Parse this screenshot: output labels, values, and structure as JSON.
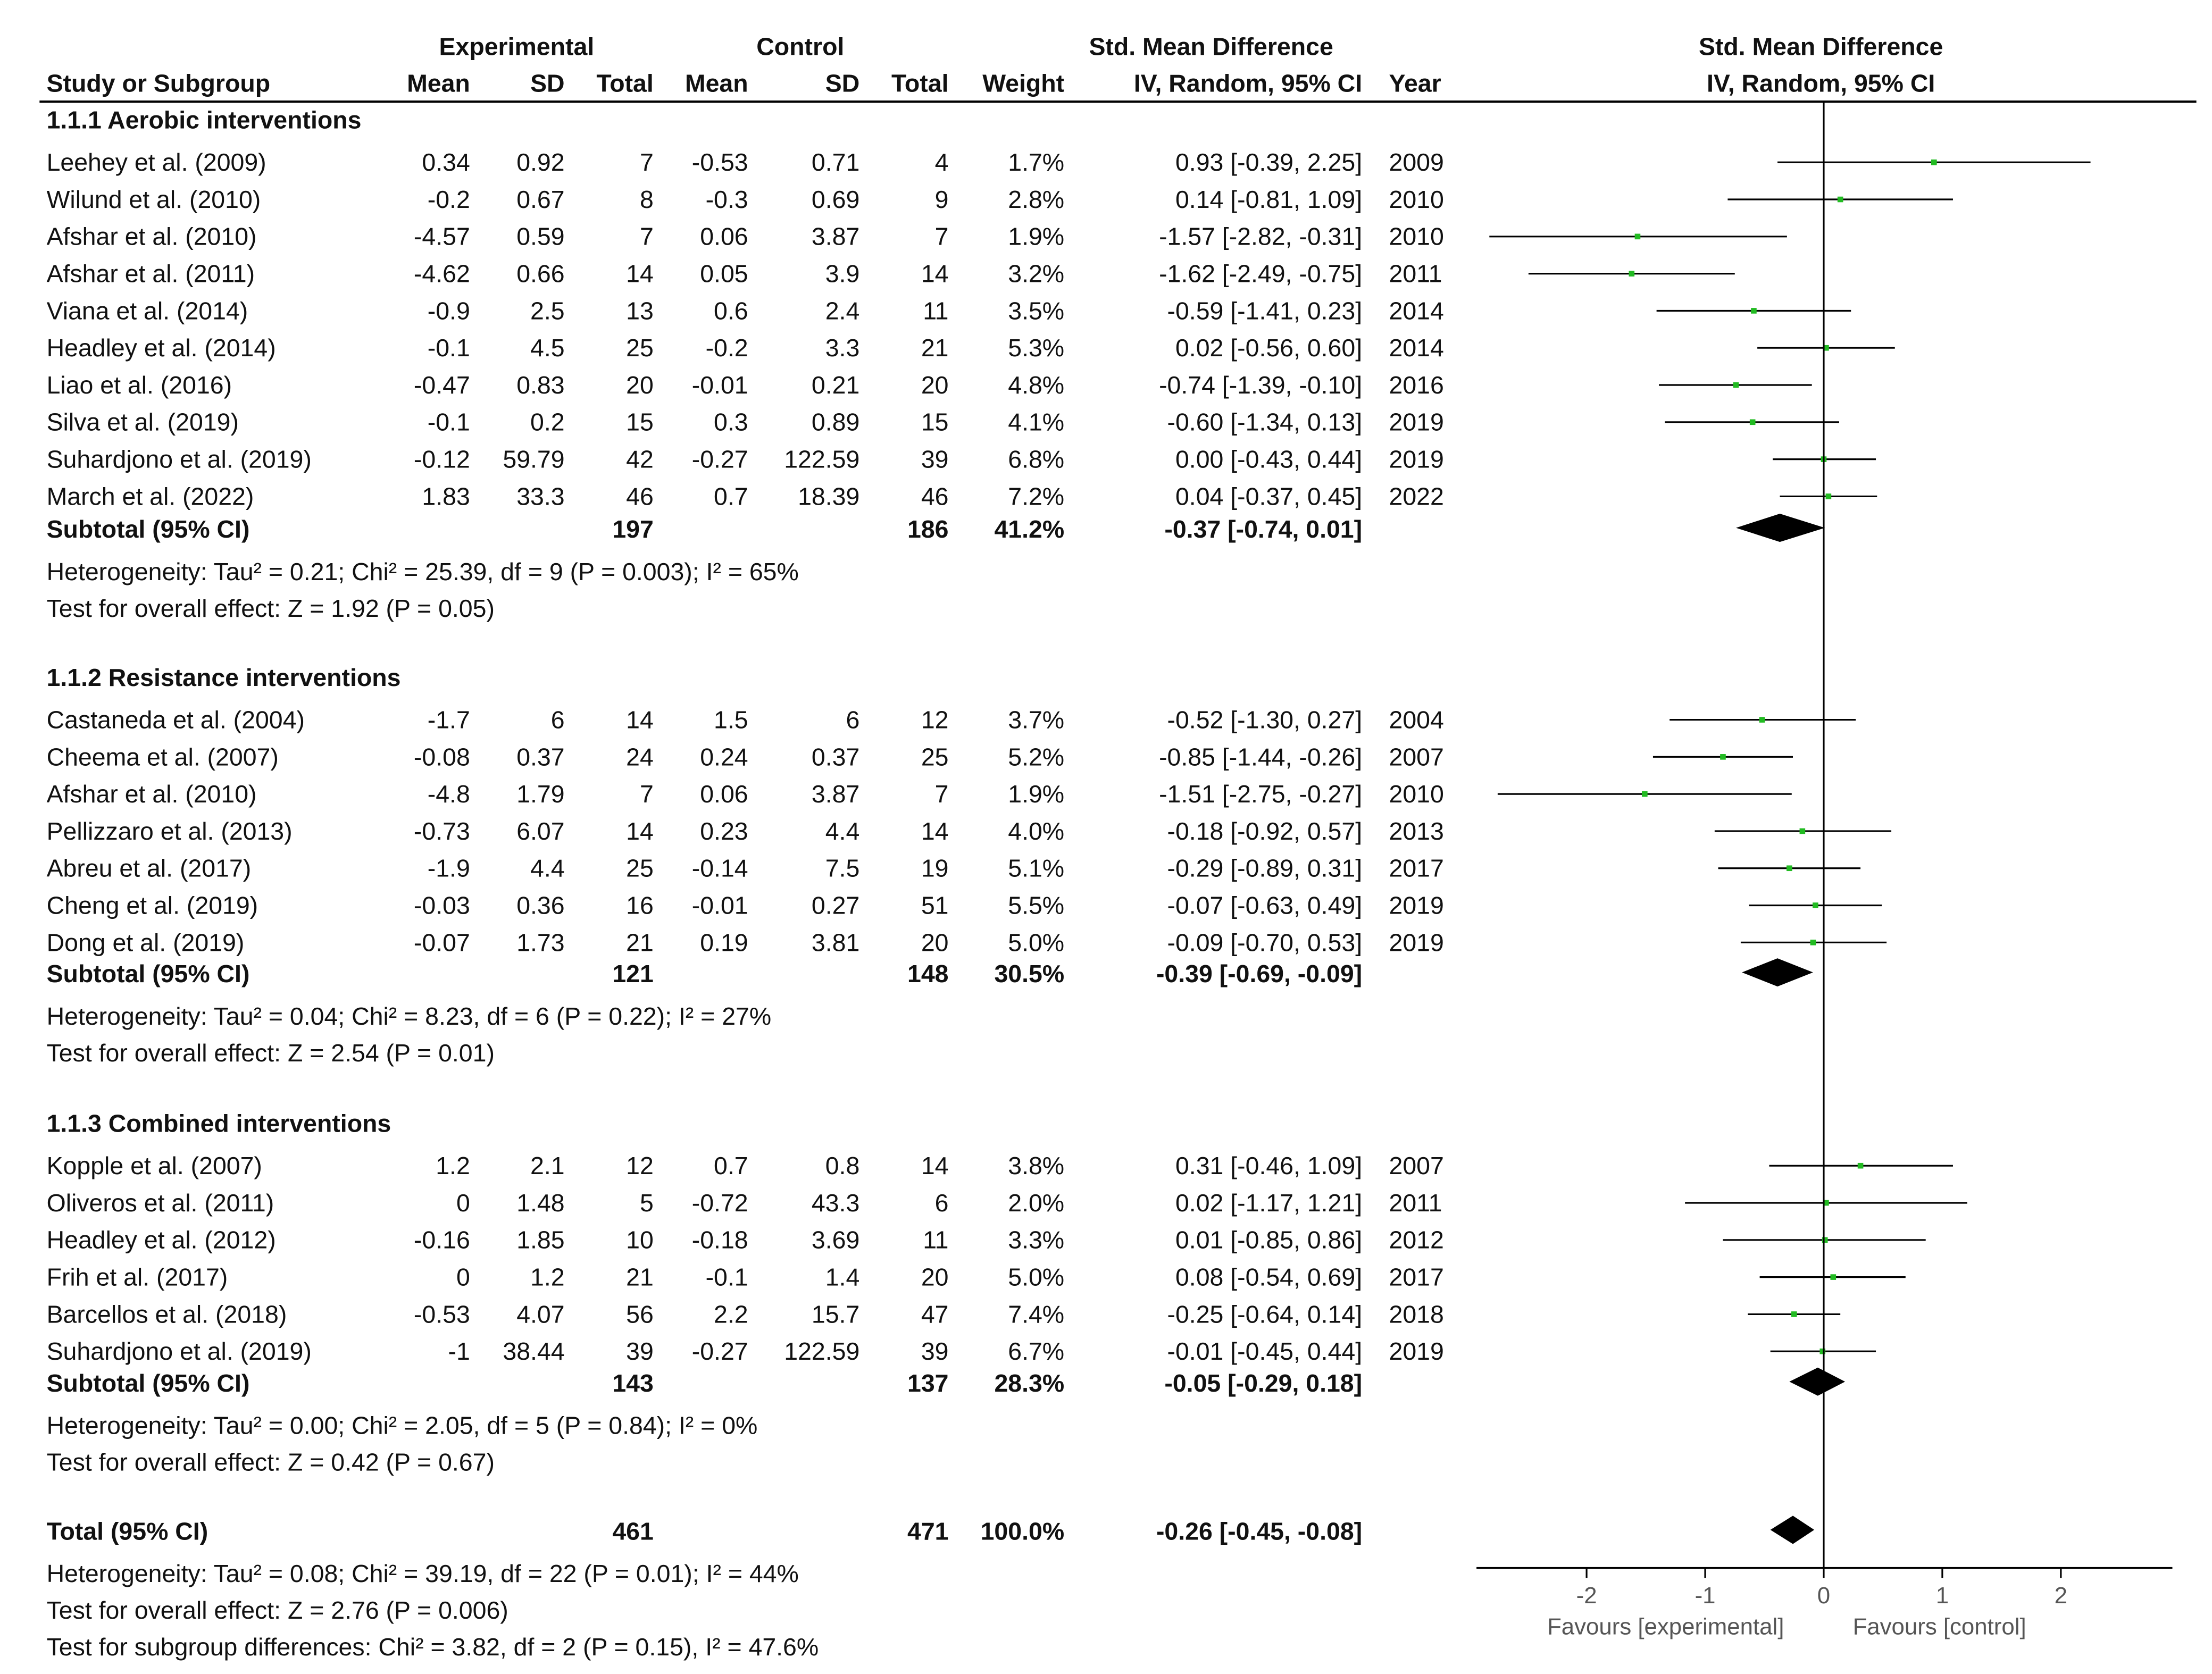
{
  "header": {
    "experimental": "Experimental",
    "control": "Control",
    "smd_left": "Std. Mean Difference",
    "smd_right": "Std. Mean Difference",
    "study": "Study or Subgroup",
    "mean_e": "Mean",
    "sd_e": "SD",
    "total_e": "Total",
    "mean_c": "Mean",
    "sd_c": "SD",
    "total_c": "Total",
    "weight": "Weight",
    "ci_left": "IV, Random, 95% CI",
    "year": "Year",
    "ci_right": "IV, Random, 95% CI"
  },
  "axis": {
    "ticks": [
      "-2",
      "-1",
      "0",
      "1",
      "2"
    ],
    "favours_experimental": "Favours [experimental]",
    "favours_control": "Favours [control]"
  },
  "chart_data": {
    "type": "forest",
    "xlim": [
      -2.9,
      2.9
    ],
    "xticks": [
      -2,
      -1,
      0,
      1,
      2
    ],
    "colors": {
      "study_marker": "#22bb22",
      "diamond": "#000000",
      "lines": "#000000"
    },
    "groups": [
      {
        "title": "1.1.1 Aerobic interventions",
        "studies": [
          {
            "name": "Leehey et al. (2009)",
            "mean_e": "0.34",
            "sd_e": "0.92",
            "n_e": "7",
            "mean_c": "-0.53",
            "sd_c": "0.71",
            "n_c": "4",
            "weight": "1.7%",
            "ci": "0.93 [-0.39, 2.25]",
            "year": "2009",
            "est": 0.93,
            "lo": -0.39,
            "hi": 2.25
          },
          {
            "name": "Wilund et al. (2010)",
            "mean_e": "-0.2",
            "sd_e": "0.67",
            "n_e": "8",
            "mean_c": "-0.3",
            "sd_c": "0.69",
            "n_c": "9",
            "weight": "2.8%",
            "ci": "0.14 [-0.81, 1.09]",
            "year": "2010",
            "est": 0.14,
            "lo": -0.81,
            "hi": 1.09
          },
          {
            "name": "Afshar et al. (2010)",
            "mean_e": "-4.57",
            "sd_e": "0.59",
            "n_e": "7",
            "mean_c": "0.06",
            "sd_c": "3.87",
            "n_c": "7",
            "weight": "1.9%",
            "ci": "-1.57 [-2.82, -0.31]",
            "year": "2010",
            "est": -1.57,
            "lo": -2.82,
            "hi": -0.31
          },
          {
            "name": "Afshar et al. (2011)",
            "mean_e": "-4.62",
            "sd_e": "0.66",
            "n_e": "14",
            "mean_c": "0.05",
            "sd_c": "3.9",
            "n_c": "14",
            "weight": "3.2%",
            "ci": "-1.62 [-2.49, -0.75]",
            "year": "2011",
            "est": -1.62,
            "lo": -2.49,
            "hi": -0.75
          },
          {
            "name": "Viana et al. (2014)",
            "mean_e": "-0.9",
            "sd_e": "2.5",
            "n_e": "13",
            "mean_c": "0.6",
            "sd_c": "2.4",
            "n_c": "11",
            "weight": "3.5%",
            "ci": "-0.59 [-1.41, 0.23]",
            "year": "2014",
            "est": -0.59,
            "lo": -1.41,
            "hi": 0.23
          },
          {
            "name": "Headley et al. (2014)",
            "mean_e": "-0.1",
            "sd_e": "4.5",
            "n_e": "25",
            "mean_c": "-0.2",
            "sd_c": "3.3",
            "n_c": "21",
            "weight": "5.3%",
            "ci": "0.02 [-0.56, 0.60]",
            "year": "2014",
            "est": 0.02,
            "lo": -0.56,
            "hi": 0.6
          },
          {
            "name": "Liao et al. (2016)",
            "mean_e": "-0.47",
            "sd_e": "0.83",
            "n_e": "20",
            "mean_c": "-0.01",
            "sd_c": "0.21",
            "n_c": "20",
            "weight": "4.8%",
            "ci": "-0.74 [-1.39, -0.10]",
            "year": "2016",
            "est": -0.74,
            "lo": -1.39,
            "hi": -0.1
          },
          {
            "name": "Silva et al. (2019)",
            "mean_e": "-0.1",
            "sd_e": "0.2",
            "n_e": "15",
            "mean_c": "0.3",
            "sd_c": "0.89",
            "n_c": "15",
            "weight": "4.1%",
            "ci": "-0.60 [-1.34, 0.13]",
            "year": "2019",
            "est": -0.6,
            "lo": -1.34,
            "hi": 0.13
          },
          {
            "name": "Suhardjono et al. (2019)",
            "mean_e": "-0.12",
            "sd_e": "59.79",
            "n_e": "42",
            "mean_c": "-0.27",
            "sd_c": "122.59",
            "n_c": "39",
            "weight": "6.8%",
            "ci": "0.00 [-0.43, 0.44]",
            "year": "2019",
            "est": 0.0,
            "lo": -0.43,
            "hi": 0.44
          },
          {
            "name": "March et al. (2022)",
            "mean_e": "1.83",
            "sd_e": "33.3",
            "n_e": "46",
            "mean_c": "0.7",
            "sd_c": "18.39",
            "n_c": "46",
            "weight": "7.2%",
            "ci": "0.04 [-0.37, 0.45]",
            "year": "2022",
            "est": 0.04,
            "lo": -0.37,
            "hi": 0.45
          }
        ],
        "subtotal": {
          "label": "Subtotal (95% CI)",
          "n_e": "197",
          "n_c": "186",
          "weight": "41.2%",
          "ci": "-0.37 [-0.74, 0.01]",
          "est": -0.37,
          "lo": -0.74,
          "hi": 0.01
        },
        "heterogeneity": "Heterogeneity: Tau² = 0.21; Chi² = 25.39, df = 9 (P = 0.003); I² = 65%",
        "overall": "Test for overall effect: Z = 1.92 (P = 0.05)"
      },
      {
        "title": "1.1.2 Resistance interventions",
        "studies": [
          {
            "name": "Castaneda et al. (2004)",
            "mean_e": "-1.7",
            "sd_e": "6",
            "n_e": "14",
            "mean_c": "1.5",
            "sd_c": "6",
            "n_c": "12",
            "weight": "3.7%",
            "ci": "-0.52 [-1.30, 0.27]",
            "year": "2004",
            "est": -0.52,
            "lo": -1.3,
            "hi": 0.27
          },
          {
            "name": "Cheema et al. (2007)",
            "mean_e": "-0.08",
            "sd_e": "0.37",
            "n_e": "24",
            "mean_c": "0.24",
            "sd_c": "0.37",
            "n_c": "25",
            "weight": "5.2%",
            "ci": "-0.85 [-1.44, -0.26]",
            "year": "2007",
            "est": -0.85,
            "lo": -1.44,
            "hi": -0.26
          },
          {
            "name": "Afshar et al. (2010)",
            "mean_e": "-4.8",
            "sd_e": "1.79",
            "n_e": "7",
            "mean_c": "0.06",
            "sd_c": "3.87",
            "n_c": "7",
            "weight": "1.9%",
            "ci": "-1.51 [-2.75, -0.27]",
            "year": "2010",
            "est": -1.51,
            "lo": -2.75,
            "hi": -0.27
          },
          {
            "name": "Pellizzaro et al. (2013)",
            "mean_e": "-0.73",
            "sd_e": "6.07",
            "n_e": "14",
            "mean_c": "0.23",
            "sd_c": "4.4",
            "n_c": "14",
            "weight": "4.0%",
            "ci": "-0.18 [-0.92, 0.57]",
            "year": "2013",
            "est": -0.18,
            "lo": -0.92,
            "hi": 0.57
          },
          {
            "name": "Abreu et al. (2017)",
            "mean_e": "-1.9",
            "sd_e": "4.4",
            "n_e": "25",
            "mean_c": "-0.14",
            "sd_c": "7.5",
            "n_c": "19",
            "weight": "5.1%",
            "ci": "-0.29 [-0.89, 0.31]",
            "year": "2017",
            "est": -0.29,
            "lo": -0.89,
            "hi": 0.31
          },
          {
            "name": "Cheng et al. (2019)",
            "mean_e": "-0.03",
            "sd_e": "0.36",
            "n_e": "16",
            "mean_c": "-0.01",
            "sd_c": "0.27",
            "n_c": "51",
            "weight": "5.5%",
            "ci": "-0.07 [-0.63, 0.49]",
            "year": "2019",
            "est": -0.07,
            "lo": -0.63,
            "hi": 0.49
          },
          {
            "name": "Dong et al. (2019)",
            "mean_e": "-0.07",
            "sd_e": "1.73",
            "n_e": "21",
            "mean_c": "0.19",
            "sd_c": "3.81",
            "n_c": "20",
            "weight": "5.0%",
            "ci": "-0.09 [-0.70, 0.53]",
            "year": "2019",
            "est": -0.09,
            "lo": -0.7,
            "hi": 0.53
          }
        ],
        "subtotal": {
          "label": "Subtotal (95% CI)",
          "n_e": "121",
          "n_c": "148",
          "weight": "30.5%",
          "ci": "-0.39 [-0.69, -0.09]",
          "est": -0.39,
          "lo": -0.69,
          "hi": -0.09
        },
        "heterogeneity": "Heterogeneity: Tau² = 0.04; Chi² = 8.23, df = 6 (P = 0.22); I² = 27%",
        "overall": "Test for overall effect: Z = 2.54 (P = 0.01)"
      },
      {
        "title": "1.1.3 Combined interventions",
        "studies": [
          {
            "name": "Kopple et al. (2007)",
            "mean_e": "1.2",
            "sd_e": "2.1",
            "n_e": "12",
            "mean_c": "0.7",
            "sd_c": "0.8",
            "n_c": "14",
            "weight": "3.8%",
            "ci": "0.31 [-0.46, 1.09]",
            "year": "2007",
            "est": 0.31,
            "lo": -0.46,
            "hi": 1.09
          },
          {
            "name": "Oliveros et al. (2011)",
            "mean_e": "0",
            "sd_e": "1.48",
            "n_e": "5",
            "mean_c": "-0.72",
            "sd_c": "43.3",
            "n_c": "6",
            "weight": "2.0%",
            "ci": "0.02 [-1.17, 1.21]",
            "year": "2011",
            "est": 0.02,
            "lo": -1.17,
            "hi": 1.21
          },
          {
            "name": "Headley et al. (2012)",
            "mean_e": "-0.16",
            "sd_e": "1.85",
            "n_e": "10",
            "mean_c": "-0.18",
            "sd_c": "3.69",
            "n_c": "11",
            "weight": "3.3%",
            "ci": "0.01 [-0.85, 0.86]",
            "year": "2012",
            "est": 0.01,
            "lo": -0.85,
            "hi": 0.86
          },
          {
            "name": "Frih et al. (2017)",
            "mean_e": "0",
            "sd_e": "1.2",
            "n_e": "21",
            "mean_c": "-0.1",
            "sd_c": "1.4",
            "n_c": "20",
            "weight": "5.0%",
            "ci": "0.08 [-0.54, 0.69]",
            "year": "2017",
            "est": 0.08,
            "lo": -0.54,
            "hi": 0.69
          },
          {
            "name": "Barcellos et al. (2018)",
            "mean_e": "-0.53",
            "sd_e": "4.07",
            "n_e": "56",
            "mean_c": "2.2",
            "sd_c": "15.7",
            "n_c": "47",
            "weight": "7.4%",
            "ci": "-0.25 [-0.64, 0.14]",
            "year": "2018",
            "est": -0.25,
            "lo": -0.64,
            "hi": 0.14
          },
          {
            "name": "Suhardjono et al. (2019)",
            "mean_e": "-1",
            "sd_e": "38.44",
            "n_e": "39",
            "mean_c": "-0.27",
            "sd_c": "122.59",
            "n_c": "39",
            "weight": "6.7%",
            "ci": "-0.01 [-0.45, 0.44]",
            "year": "2019",
            "est": -0.01,
            "lo": -0.45,
            "hi": 0.44
          }
        ],
        "subtotal": {
          "label": "Subtotal (95% CI)",
          "n_e": "143",
          "n_c": "137",
          "weight": "28.3%",
          "ci": "-0.05 [-0.29, 0.18]",
          "est": -0.05,
          "lo": -0.29,
          "hi": 0.18
        },
        "heterogeneity": "Heterogeneity: Tau² = 0.00; Chi² = 2.05, df = 5 (P = 0.84); I² = 0%",
        "overall": "Test for overall effect: Z = 0.42 (P = 0.67)"
      }
    ],
    "total": {
      "label": "Total (95% CI)",
      "n_e": "461",
      "n_c": "471",
      "weight": "100.0%",
      "ci": "-0.26 [-0.45, -0.08]",
      "est": -0.26,
      "lo": -0.45,
      "hi": -0.08
    },
    "footer": [
      "Heterogeneity: Tau² = 0.08; Chi² = 39.19, df = 22 (P = 0.01); I² = 44%",
      "Test for overall effect: Z = 2.76 (P = 0.006)",
      "Test for subgroup differences: Chi² = 3.82, df = 2 (P = 0.15), I² = 47.6%"
    ]
  }
}
